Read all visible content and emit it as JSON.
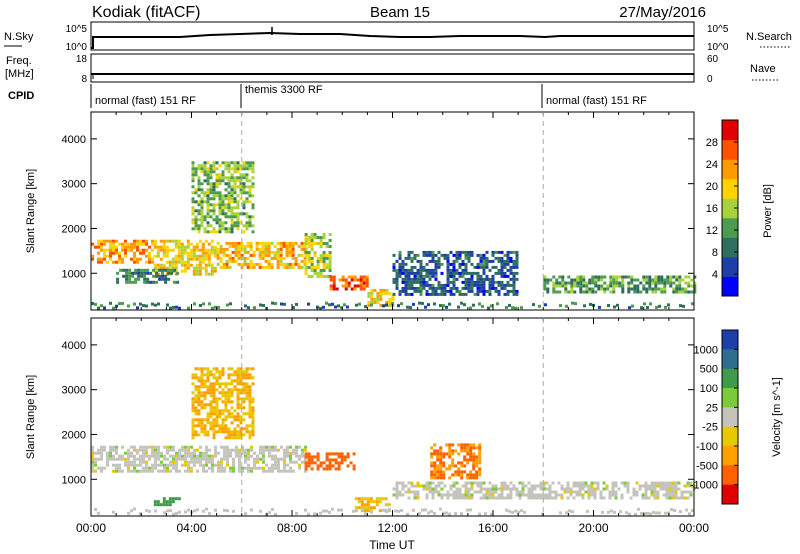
{
  "header": {
    "station": "Kodiak (fitACF)",
    "beam": "Beam 15",
    "date": "27/May/2016"
  },
  "noise_panel": {
    "left_label": "N.Sky",
    "right_label": "N.Search",
    "left_ticks": [
      "10^5",
      "10^0"
    ],
    "right_ticks": [
      "10^5",
      "10^0"
    ]
  },
  "freq_panel": {
    "left_label_1": "Freq.",
    "left_label_2": "[MHz]",
    "left_ticks": [
      "18",
      "8"
    ],
    "right_label": "Nave",
    "right_ticks": [
      "60",
      "0"
    ]
  },
  "cpid_panel": {
    "label": "CPID",
    "segments": [
      {
        "start_hour": 0,
        "end_hour": 6,
        "name": "normal (fast) 151 RF"
      },
      {
        "start_hour": 6,
        "end_hour": 18,
        "name": "themis 3300 RF"
      },
      {
        "start_hour": 18,
        "end_hour": 24,
        "name": "normal (fast) 151 RF"
      }
    ]
  },
  "time_axis": {
    "label": "Time UT",
    "ticks": [
      "00:00",
      "04:00",
      "08:00",
      "12:00",
      "16:00",
      "20:00",
      "00:00"
    ]
  },
  "range_axis": {
    "label": "Slant Range [km]",
    "ticks": [
      "1000",
      "2000",
      "3000",
      "4000"
    ]
  },
  "colors": {
    "power": [
      "#0000ff",
      "#1f3fa8",
      "#2e6e5e",
      "#4e9a4e",
      "#a8d23c",
      "#ffd200",
      "#ff9a00",
      "#ff5000",
      "#e00000"
    ],
    "velocity_pos": [
      "#1f3fa8",
      "#2e6e8e",
      "#3f9a4a",
      "#7acc3a"
    ],
    "velocity_neg": [
      "#e8c800",
      "#ffa000",
      "#ff6000",
      "#e00000"
    ],
    "velocity_mid": "#c4c4bc"
  },
  "chart_data": [
    {
      "type": "heatmap",
      "title": "Power",
      "xlabel": "Time UT",
      "ylabel": "Slant Range [km]",
      "xlim": [
        0,
        24
      ],
      "ylim": [
        180,
        4600
      ],
      "colorbar": {
        "label": "Power [dB]",
        "ticks": [
          4,
          8,
          12,
          16,
          20,
          24,
          28
        ],
        "range": [
          0,
          32
        ]
      },
      "regions": [
        {
          "t0": 0.0,
          "t1": 2.5,
          "r0": 1250,
          "r1": 1750,
          "value": 24
        },
        {
          "t0": 2.5,
          "t1": 5.0,
          "r0": 1000,
          "r1": 1750,
          "value": 20
        },
        {
          "t0": 5.0,
          "t1": 8.5,
          "r0": 1100,
          "r1": 1700,
          "value": 22
        },
        {
          "t0": 8.5,
          "t1": 9.5,
          "r0": 900,
          "r1": 1900,
          "value": 16
        },
        {
          "t0": 9.5,
          "t1": 11.0,
          "r0": 650,
          "r1": 950,
          "value": 28
        },
        {
          "t0": 11.0,
          "t1": 12.0,
          "r0": 300,
          "r1": 650,
          "value": 20
        },
        {
          "t0": 12.0,
          "t1": 17.0,
          "r0": 500,
          "r1": 1500,
          "value": 6
        },
        {
          "t0": 18.0,
          "t1": 24.0,
          "r0": 600,
          "r1": 950,
          "value": 12
        },
        {
          "t0": 4.0,
          "t1": 6.5,
          "r0": 1900,
          "r1": 3500,
          "value": 14
        },
        {
          "t0": 1.0,
          "t1": 3.5,
          "r0": 800,
          "r1": 1100,
          "value": 10
        }
      ]
    },
    {
      "type": "heatmap",
      "title": "Velocity",
      "xlabel": "Time UT",
      "ylabel": "Slant Range [km]",
      "xlim": [
        0,
        24
      ],
      "ylim": [
        180,
        4600
      ],
      "colorbar": {
        "label": "Velocity [m s^-1]",
        "ticks": [
          1000,
          500,
          100,
          25,
          -25,
          -100,
          -500,
          -1000
        ]
      },
      "regions": [
        {
          "t0": 0.0,
          "t1": 8.5,
          "r0": 1200,
          "r1": 1750,
          "value": 0
        },
        {
          "t0": 8.5,
          "t1": 10.5,
          "r0": 1250,
          "r1": 1600,
          "value": -500
        },
        {
          "t0": 10.5,
          "t1": 12.0,
          "r0": 300,
          "r1": 600,
          "value": -100
        },
        {
          "t0": 13.5,
          "t1": 15.5,
          "r0": 1000,
          "r1": 1800,
          "value": -300
        },
        {
          "t0": 12.0,
          "t1": 24.0,
          "r0": 600,
          "r1": 950,
          "value": 0
        },
        {
          "t0": 4.0,
          "t1": 6.5,
          "r0": 1900,
          "r1": 3500,
          "value": -100
        },
        {
          "t0": 2.5,
          "t1": 3.5,
          "r0": 400,
          "r1": 600,
          "value": 200
        }
      ]
    }
  ]
}
